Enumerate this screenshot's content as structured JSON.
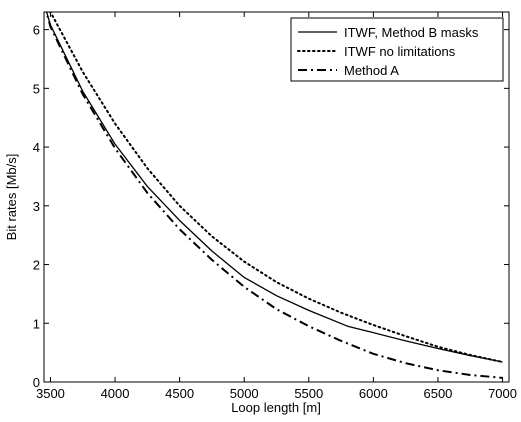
{
  "chart_data": {
    "type": "line",
    "xlabel": "Loop length [m]",
    "ylabel": "Bit rates [Mb/s]",
    "xlim": [
      3450,
      7050
    ],
    "ylim": [
      0,
      6.3
    ],
    "x_ticks": [
      "3500",
      "4000",
      "4500",
      "5000",
      "5500",
      "6000",
      "6500",
      "7000"
    ],
    "y_ticks": [
      "0",
      "1",
      "2",
      "3",
      "4",
      "5",
      "6"
    ],
    "grid": false,
    "legend_position": "top-right",
    "series": [
      {
        "name": "ITWF, Method B masks",
        "style": "solid",
        "x": [
          3450,
          3500,
          3750,
          4000,
          4250,
          4500,
          4750,
          5000,
          5250,
          5500,
          5800,
          6000,
          6250,
          6500,
          6750,
          7000
        ],
        "y": [
          6.45,
          6.08,
          4.95,
          4.05,
          3.33,
          2.75,
          2.23,
          1.78,
          1.47,
          1.22,
          0.95,
          0.84,
          0.7,
          0.57,
          0.45,
          0.34
        ]
      },
      {
        "name": "ITWF no limitations",
        "style": "dotted",
        "x": [
          3450,
          3500,
          3750,
          4000,
          4250,
          4500,
          4750,
          5000,
          5250,
          5500,
          5750,
          6000,
          6250,
          6500,
          6750,
          7000
        ],
        "y": [
          6.55,
          6.3,
          5.28,
          4.4,
          3.64,
          3.0,
          2.48,
          2.05,
          1.7,
          1.42,
          1.18,
          0.97,
          0.78,
          0.6,
          0.46,
          0.34
        ]
      },
      {
        "name": "Method A",
        "style": "dashdot",
        "x": [
          3450,
          3500,
          3750,
          4000,
          4250,
          4500,
          4750,
          5000,
          5250,
          5500,
          5750,
          6000,
          6250,
          6500,
          6750,
          7000
        ],
        "y": [
          6.45,
          6.05,
          4.9,
          3.98,
          3.22,
          2.6,
          2.08,
          1.62,
          1.24,
          0.95,
          0.7,
          0.48,
          0.32,
          0.2,
          0.12,
          0.07
        ]
      }
    ]
  }
}
